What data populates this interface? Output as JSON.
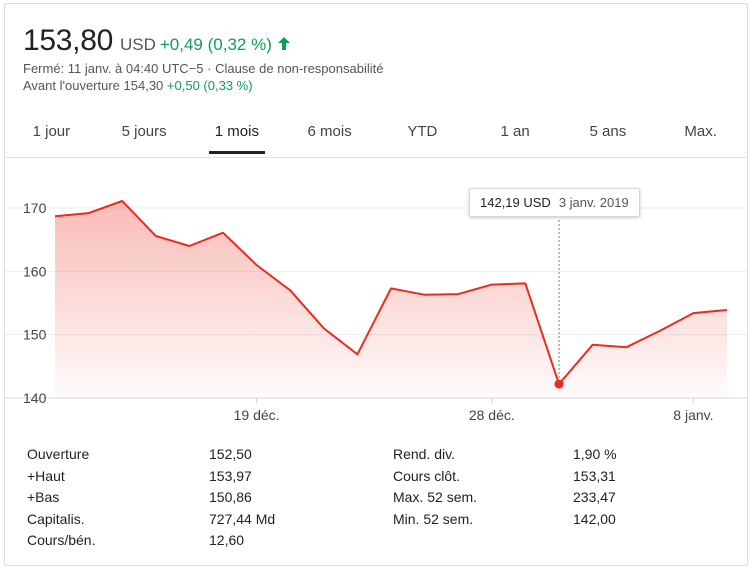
{
  "header": {
    "price": "153,80",
    "currency": "USD",
    "change": "+0,49 (0,32 %)",
    "closed_line": "Fermé: 11 janv. à 04:40 UTC−5 · Clause de non-responsabilité",
    "premarket_label": "Avant l'ouverture 154,30",
    "premarket_change": "+0,50 (0,33 %)"
  },
  "colors": {
    "positive": "#0f9d58",
    "line": "#ea2c1e"
  },
  "tabs": [
    "1 jour",
    "5 jours",
    "1 mois",
    "6 mois",
    "YTD",
    "1 an",
    "5 ans",
    "Max."
  ],
  "active_tab": "1 mois",
  "tooltip": {
    "value": "142,19 USD",
    "date": "3 janv. 2019"
  },
  "chart_data": {
    "type": "area",
    "ylim": [
      140,
      170
    ],
    "y_ticks": [
      "170",
      "160",
      "150",
      "140"
    ],
    "x_tick_labels": [
      "19 déc.",
      "28 déc.",
      "8 janv."
    ],
    "values": [
      168.7,
      169.2,
      171.1,
      165.6,
      164.0,
      166.1,
      161.0,
      157.0,
      151.0,
      146.9,
      157.3,
      156.3,
      156.4,
      157.9,
      158.1,
      142.2,
      148.4,
      148.0,
      150.6,
      153.4,
      153.9
    ],
    "highlight_index": 15
  },
  "stats": {
    "left": [
      {
        "label": "Ouverture",
        "value": "152,50"
      },
      {
        "label": "+Haut",
        "value": "153,97"
      },
      {
        "label": "+Bas",
        "value": "150,86"
      },
      {
        "label": "Capitalis.",
        "value": "727,44 Md"
      },
      {
        "label": "Cours/bén.",
        "value": "12,60"
      }
    ],
    "right": [
      {
        "label": "Rend. div.",
        "value": "1,90 %"
      },
      {
        "label": "Cours clôt.",
        "value": "153,31"
      },
      {
        "label": "Max. 52 sem.",
        "value": "233,47"
      },
      {
        "label": "Min. 52 sem.",
        "value": "142,00"
      }
    ]
  }
}
